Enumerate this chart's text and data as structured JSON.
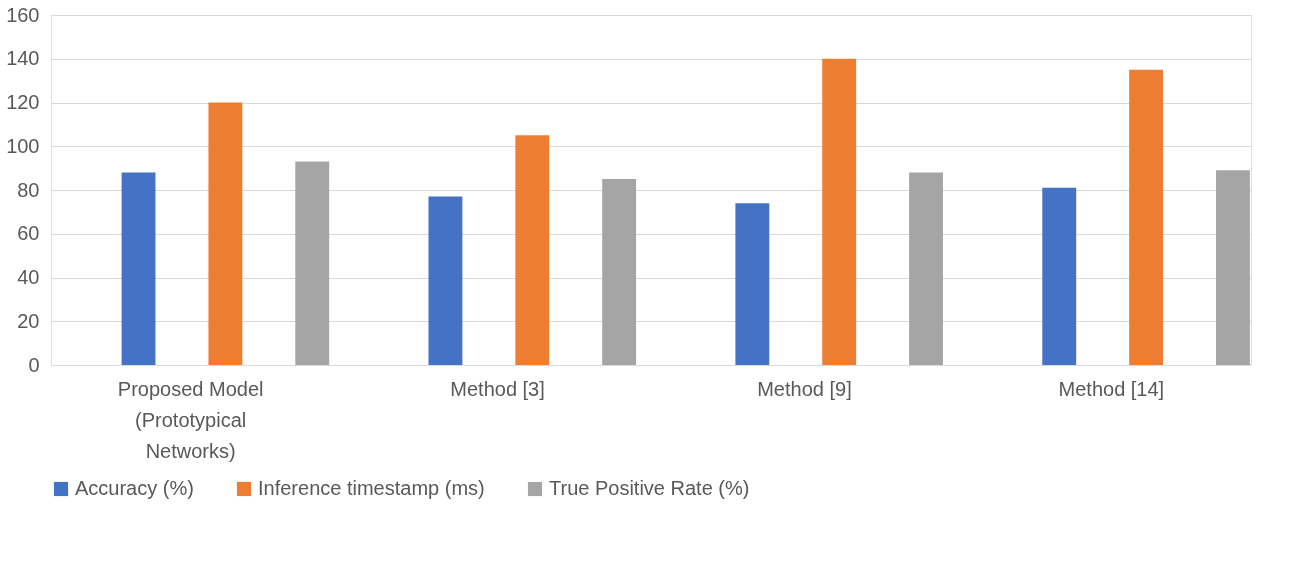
{
  "chart_data": {
    "type": "bar",
    "categories": [
      "Proposed Model\n(Prototypical\nNetworks)",
      "Method [3]",
      "Method [9]",
      "Method [14]"
    ],
    "series": [
      {
        "name": "Accuracy (%)",
        "color": "#4472c4",
        "values": [
          88,
          77,
          74,
          81
        ]
      },
      {
        "name": "Inference timestamp (ms)",
        "color": "#ed7d31",
        "values": [
          120,
          105,
          140,
          135
        ]
      },
      {
        "name": "True Positive Rate (%)",
        "color": "#a5a5a5",
        "values": [
          93,
          85,
          88,
          89
        ]
      }
    ],
    "ylim": [
      0,
      160
    ],
    "yticks": [
      0,
      20,
      40,
      60,
      80,
      100,
      120,
      140,
      160
    ],
    "grid": "y",
    "legend": "bottom"
  }
}
